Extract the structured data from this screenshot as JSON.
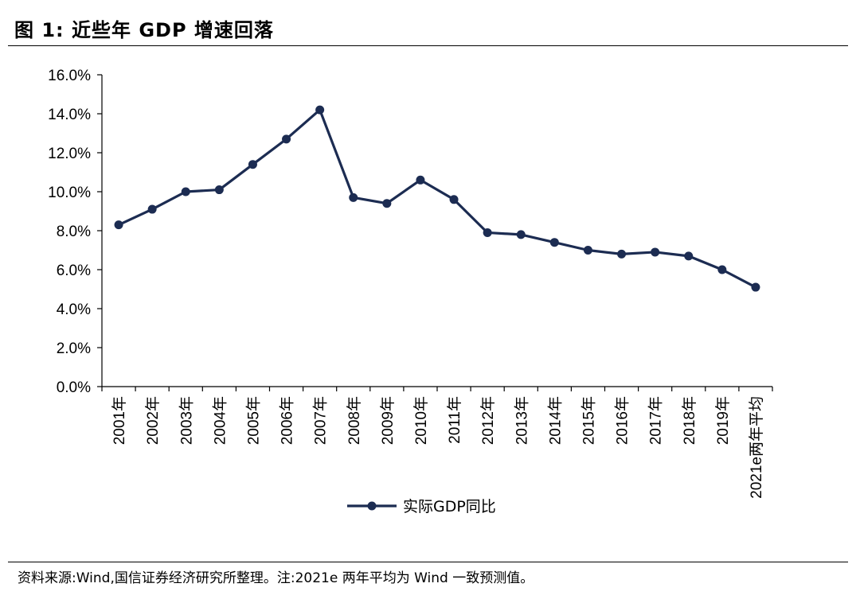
{
  "figure_title": "图 1:  近些年 GDP 增速回落",
  "source_note": "资料来源:Wind,国信证券经济研究所整理。注:2021e 两年平均为 Wind 一致预测值。",
  "colors": {
    "series": "#1c2c52",
    "axis": "#000000",
    "text": "#000000"
  },
  "chart_data": {
    "type": "line",
    "title": "",
    "xlabel": "",
    "ylabel": "",
    "categories": [
      "2001年",
      "2002年",
      "2003年",
      "2004年",
      "2005年",
      "2006年",
      "2007年",
      "2008年",
      "2009年",
      "2010年",
      "2011年",
      "2012年",
      "2013年",
      "2014年",
      "2015年",
      "2016年",
      "2017年",
      "2018年",
      "2019年",
      "2021e两年平均"
    ],
    "series": [
      {
        "name": "实际GDP同比",
        "values": [
          8.3,
          9.1,
          10.0,
          10.1,
          11.4,
          12.7,
          14.2,
          9.7,
          9.4,
          10.6,
          9.6,
          7.9,
          7.8,
          7.4,
          7.0,
          6.8,
          6.9,
          6.7,
          6.0,
          5.1
        ]
      }
    ],
    "ylim": [
      0,
      16
    ],
    "yticks": [
      "0.0%",
      "2.0%",
      "4.0%",
      "6.0%",
      "8.0%",
      "10.0%",
      "12.0%",
      "14.0%",
      "16.0%"
    ],
    "grid": false,
    "legend_position": "bottom-center"
  }
}
